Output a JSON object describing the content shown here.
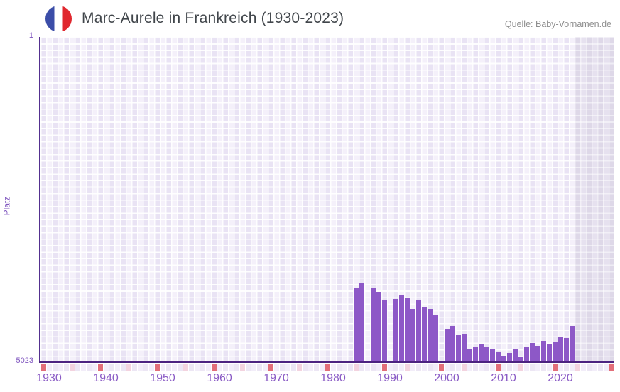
{
  "header": {
    "title": "Marc-Aurele in Frankreich (1930-2023)",
    "source": "Quelle: Baby-Vornamen.de",
    "flag_icon": "france-flag-icon"
  },
  "chart_data": {
    "type": "bar",
    "title": "Marc-Aurele in Frankreich (1930-2023)",
    "xlabel": "",
    "ylabel": "Platz",
    "y_axis": {
      "top_tick_label": "1",
      "bottom_tick_label": "5023",
      "min": 1,
      "max": 5023,
      "inverted": true,
      "gridline_step_ranks": 100
    },
    "x_axis": {
      "tick_labels": [
        "1930",
        "1940",
        "1950",
        "1960",
        "1970",
        "1980",
        "1990",
        "2000",
        "2010",
        "2020"
      ],
      "tick_years": [
        1930,
        1940,
        1950,
        1960,
        1970,
        1980,
        1990,
        2000,
        2010,
        2020
      ],
      "edge_range_years": [
        1928.5,
        2029.5
      ],
      "grid": true
    },
    "series": [
      {
        "name": "Platz",
        "points": [
          {
            "year": 1984,
            "rank": 3870
          },
          {
            "year": 1985,
            "rank": 3810
          },
          {
            "year": 1987,
            "rank": 3875
          },
          {
            "year": 1988,
            "rank": 3940
          },
          {
            "year": 1989,
            "rank": 4060
          },
          {
            "year": 1991,
            "rank": 4050
          },
          {
            "year": 1992,
            "rank": 3980
          },
          {
            "year": 1993,
            "rank": 4020
          },
          {
            "year": 1994,
            "rank": 4200
          },
          {
            "year": 1995,
            "rank": 4055
          },
          {
            "year": 1996,
            "rank": 4170
          },
          {
            "year": 1997,
            "rank": 4195
          },
          {
            "year": 1998,
            "rank": 4285
          },
          {
            "year": 2000,
            "rank": 4510
          },
          {
            "year": 2001,
            "rank": 4465
          },
          {
            "year": 2002,
            "rank": 4610
          },
          {
            "year": 2003,
            "rank": 4595
          },
          {
            "year": 2004,
            "rank": 4815
          },
          {
            "year": 2005,
            "rank": 4795
          },
          {
            "year": 2006,
            "rank": 4750
          },
          {
            "year": 2007,
            "rank": 4780
          },
          {
            "year": 2008,
            "rank": 4825
          },
          {
            "year": 2009,
            "rank": 4865
          },
          {
            "year": 2010,
            "rank": 4930
          },
          {
            "year": 2011,
            "rank": 4875
          },
          {
            "year": 2012,
            "rank": 4810
          },
          {
            "year": 2013,
            "rank": 4945
          },
          {
            "year": 2014,
            "rank": 4790
          },
          {
            "year": 2015,
            "rank": 4725
          },
          {
            "year": 2016,
            "rank": 4765
          },
          {
            "year": 2017,
            "rank": 4695
          },
          {
            "year": 2018,
            "rank": 4735
          },
          {
            "year": 2019,
            "rank": 4710
          },
          {
            "year": 2020,
            "rank": 4630
          },
          {
            "year": 2021,
            "rank": 4645
          },
          {
            "year": 2022,
            "rank": 4465
          }
        ]
      }
    ],
    "missing_years": [
      1986,
      1990,
      1999,
      2023
    ],
    "highlight_band": {
      "start_year": 2022.5,
      "end_year": 2029.5
    },
    "bottom_strip": {
      "red_years": [
        1929,
        1939,
        1949,
        1959,
        1969,
        1979,
        1989,
        1999,
        2009,
        2019,
        2029
      ],
      "pink_years": [
        1934,
        1944,
        1954,
        1964,
        1974,
        1984,
        1993,
        2003,
        2013,
        2023
      ]
    },
    "legend": null,
    "colors": {
      "bar": "#8d58c7",
      "x_axis_line": "#4c2380",
      "y_axis_line": "#54308f",
      "tick_label": "#8a5bc5",
      "y_tick_label": "#7f55bf",
      "plot_tile_light": "#f4f0fa",
      "plot_tile_dark": "#e9e3f4",
      "band_tile_light": "#e6e1ef",
      "band_tile_dark": "#ded8e8",
      "strip_tile_light": "#f2edf9",
      "strip_tile_dark": "#ece6f4",
      "strip_red": "#e26e79",
      "strip_pink": "#f3d3df",
      "title_text": "#41464b",
      "source_text": "#8e8e8e",
      "flag_blue": "#3b4da8",
      "flag_red": "#e0272e"
    }
  }
}
